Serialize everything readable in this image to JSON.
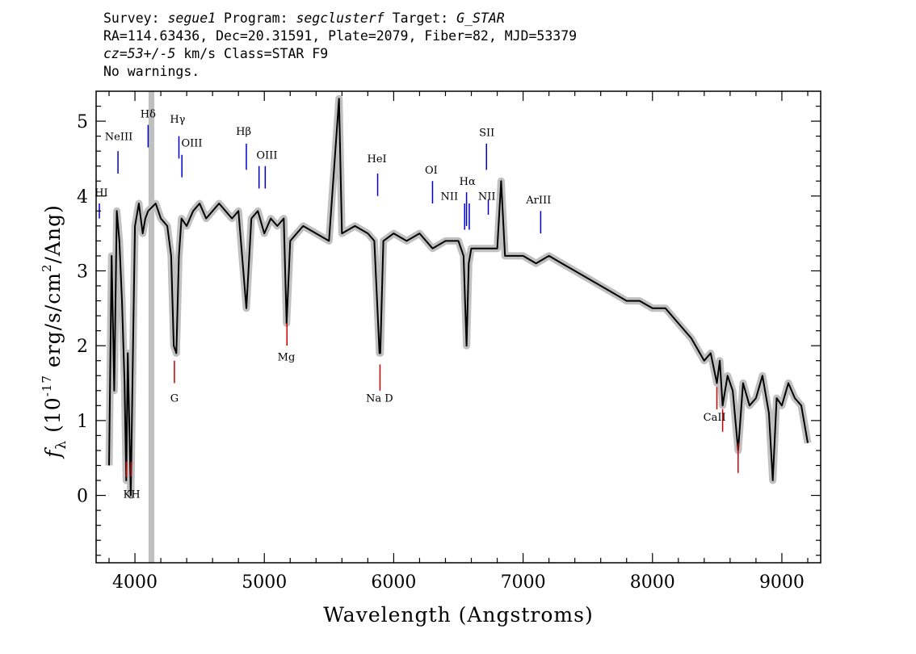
{
  "header": {
    "line1": {
      "survey_label": "Survey: ",
      "survey": "segue1",
      "program_label": " Program: ",
      "program": "segclusterf",
      "target_label": " Target: ",
      "target": "G_STAR"
    },
    "line2": "RA=114.63436, Dec=20.31591, Plate=2079, Fiber=82, MJD=53379",
    "line3": {
      "cz": "cz=53+/-5",
      "rest": " km/s Class=STAR F9"
    },
    "line4": "No warnings."
  },
  "chart_data": {
    "type": "line",
    "xlabel": "Wavelength (Angstroms)",
    "ylabel_parts": {
      "f": "f",
      "sub": "λ",
      "open": " (10",
      "exp1": "-17",
      "mid": " erg/s/cm",
      "exp2": "2",
      "close": "/Ang)"
    },
    "xlim": [
      3700,
      9300
    ],
    "ylim": [
      -0.9,
      5.4
    ],
    "x_ticks": [
      4000,
      5000,
      6000,
      7000,
      8000,
      9000
    ],
    "x_tick_labels": [
      "4000",
      "5000",
      "6000",
      "7000",
      "8000",
      "9000"
    ],
    "y_ticks": [
      0,
      1,
      2,
      3,
      4,
      5
    ],
    "y_tick_labels": [
      "0",
      "1",
      "2",
      "3",
      "4",
      "5"
    ],
    "colors": {
      "flux": "#000000",
      "error": "#c0c0c0",
      "emission": "#0000cc",
      "absorption": "#cc0000",
      "mask": "#c0c0c0"
    },
    "masked_region": [
      4105,
      4150
    ],
    "series": [
      {
        "role": "flux",
        "x": [
          3800,
          3820,
          3840,
          3860,
          3880,
          3900,
          3920,
          3933,
          3945,
          3968,
          3985,
          4000,
          4030,
          4060,
          4080,
          4102,
          4160,
          4200,
          4250,
          4280,
          4300,
          4320,
          4340,
          4360,
          4400,
          4450,
          4500,
          4550,
          4600,
          4650,
          4700,
          4750,
          4800,
          4861,
          4900,
          4950,
          5000,
          5050,
          5100,
          5150,
          5172,
          5200,
          5250,
          5300,
          5400,
          5500,
          5577,
          5600,
          5700,
          5800,
          5850,
          5890,
          5896,
          5920,
          6000,
          6100,
          6200,
          6300,
          6400,
          6500,
          6540,
          6563,
          6580,
          6600,
          6700,
          6800,
          6830,
          6860,
          6900,
          7000,
          7100,
          7200,
          7300,
          7400,
          7500,
          7600,
          7700,
          7800,
          7900,
          8000,
          8100,
          8200,
          8300,
          8400,
          8450,
          8498,
          8520,
          8542,
          8580,
          8620,
          8662,
          8700,
          8750,
          8800,
          8850,
          8900,
          8930,
          8960,
          9000,
          9050,
          9100,
          9150,
          9200
        ],
        "y": [
          0.4,
          3.2,
          1.4,
          3.8,
          3.4,
          2.6,
          1.5,
          0.2,
          1.9,
          0.0,
          2.0,
          3.6,
          3.9,
          3.5,
          3.7,
          3.8,
          3.9,
          3.7,
          3.6,
          3.2,
          2.0,
          1.9,
          3.2,
          3.7,
          3.6,
          3.8,
          3.9,
          3.7,
          3.8,
          3.9,
          3.8,
          3.7,
          3.8,
          2.5,
          3.7,
          3.8,
          3.5,
          3.7,
          3.6,
          3.7,
          2.3,
          3.4,
          3.5,
          3.6,
          3.5,
          3.4,
          5.3,
          3.5,
          3.6,
          3.5,
          3.4,
          1.9,
          1.9,
          3.4,
          3.5,
          3.4,
          3.5,
          3.3,
          3.4,
          3.4,
          3.2,
          2.0,
          3.1,
          3.3,
          3.3,
          3.3,
          4.2,
          3.2,
          3.2,
          3.2,
          3.1,
          3.2,
          3.1,
          3.0,
          2.9,
          2.8,
          2.7,
          2.6,
          2.6,
          2.5,
          2.5,
          2.3,
          2.1,
          1.8,
          1.9,
          1.5,
          1.8,
          1.2,
          1.6,
          1.4,
          0.6,
          1.5,
          1.2,
          1.3,
          1.6,
          1.1,
          0.2,
          1.3,
          1.2,
          1.5,
          1.3,
          1.2,
          0.7
        ]
      }
    ],
    "spectral_lines": {
      "emission": [
        {
          "label": "HI",
          "x": 3725,
          "y_top": 3.9,
          "y_bottom": 3.7
        },
        {
          "label": "NeIII",
          "x": 3869,
          "y_top": 4.6,
          "y_bottom": 4.3
        },
        {
          "label": "Hδ",
          "x": 4102,
          "y_top": 4.95,
          "y_bottom": 4.65
        },
        {
          "label": "Hγ",
          "x": 4340,
          "y_top": 4.8,
          "y_bottom": 4.5
        },
        {
          "label": "OIII",
          "x": 4363,
          "y_top": 4.55,
          "y_bottom": 4.25
        },
        {
          "label": "Hβ",
          "x": 4861,
          "y_top": 4.7,
          "y_bottom": 4.35
        },
        {
          "label": "OIII",
          "x": 4959,
          "y_top": 4.4,
          "y_bottom": 4.1
        },
        {
          "label": "OIII",
          "x": 5007,
          "y_top": 4.4,
          "y_bottom": 4.1
        },
        {
          "label": "HeI",
          "x": 5876,
          "y_top": 4.3,
          "y_bottom": 4.0
        },
        {
          "label": "OI",
          "x": 6300,
          "y_top": 4.2,
          "y_bottom": 3.9
        },
        {
          "label": "NII",
          "x": 6548,
          "y_top": 3.9,
          "y_bottom": 3.55
        },
        {
          "label": "Hα",
          "x": 6563,
          "y_top": 4.05,
          "y_bottom": 3.6
        },
        {
          "label": "NII",
          "x": 6584,
          "y_top": 3.9,
          "y_bottom": 3.55
        },
        {
          "label": "SII",
          "x": 6717,
          "y_top": 4.7,
          "y_bottom": 4.35
        },
        {
          "label": "SII",
          "x": 6731,
          "y_top": 3.95,
          "y_bottom": 3.75
        },
        {
          "label": "ArIII",
          "x": 7136,
          "y_top": 3.8,
          "y_bottom": 3.5
        }
      ],
      "absorption": [
        {
          "label": "K",
          "x": 3934,
          "y_top": 0.45,
          "y_bottom": 0.25
        },
        {
          "label": "H",
          "x": 3969,
          "y_top": 0.45,
          "y_bottom": 0.25
        },
        {
          "label": "G",
          "x": 4305,
          "y_top": 1.8,
          "y_bottom": 1.5
        },
        {
          "label": "Mg",
          "x": 5175,
          "y_top": 2.3,
          "y_bottom": 2.0
        },
        {
          "label": "Na",
          "x": 5894,
          "y_top": 1.75,
          "y_bottom": 1.4
        },
        {
          "label": "CaII",
          "x": 8498,
          "y_top": 1.45,
          "y_bottom": 1.15
        },
        {
          "label": "CaII",
          "x": 8542,
          "y_top": 1.15,
          "y_bottom": 0.85
        },
        {
          "label": "CaII",
          "x": 8662,
          "y_top": 0.7,
          "y_bottom": 0.3
        }
      ]
    },
    "line_labels": [
      {
        "text": "HI",
        "x": 3740,
        "y": 4.0
      },
      {
        "text": "NeIII",
        "x": 3875,
        "y": 4.75
      },
      {
        "text": "Hδ",
        "x": 4102,
        "y": 5.05
      },
      {
        "text": "Hγ",
        "x": 4330,
        "y": 4.98
      },
      {
        "text": "OIII",
        "x": 4440,
        "y": 4.66
      },
      {
        "text": "Hβ",
        "x": 4840,
        "y": 4.82
      },
      {
        "text": "OIII",
        "x": 5020,
        "y": 4.5
      },
      {
        "text": "HeI",
        "x": 5870,
        "y": 4.45
      },
      {
        "text": "OI",
        "x": 6290,
        "y": 4.3
      },
      {
        "text": "NII",
        "x": 6430,
        "y": 3.95
      },
      {
        "text": "Hα",
        "x": 6570,
        "y": 4.15
      },
      {
        "text": "NII",
        "x": 6720,
        "y": 3.95
      },
      {
        "text": "SII",
        "x": 6720,
        "y": 4.8
      },
      {
        "text": "ArIII",
        "x": 7120,
        "y": 3.9
      },
      {
        "text": "KH",
        "x": 3975,
        "y": -0.03
      },
      {
        "text": "G",
        "x": 4305,
        "y": 1.25
      },
      {
        "text": "Mg",
        "x": 5170,
        "y": 1.8
      },
      {
        "text": "Na  D",
        "x": 5890,
        "y": 1.25
      },
      {
        "text": "CaII",
        "x": 8480,
        "y": 1.0
      }
    ]
  }
}
